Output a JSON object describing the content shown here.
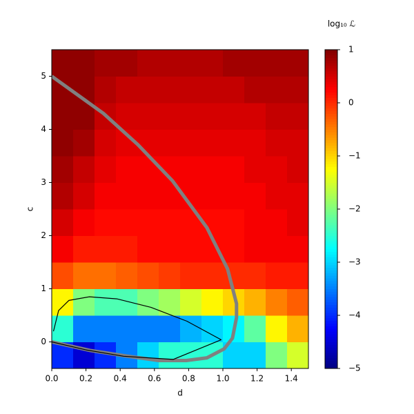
{
  "chart_data": {
    "type": "heatmap",
    "xlabel": "d",
    "ylabel": "c",
    "colorbar_label": "log₁₀ ℒ",
    "xlim": [
      0,
      1.5
    ],
    "ylim": [
      -0.5,
      5.5
    ],
    "xticks": [
      {
        "value": 0,
        "label": "0.0"
      },
      {
        "value": 0.2,
        "label": "0.2"
      },
      {
        "value": 0.4,
        "label": "0.4"
      },
      {
        "value": 0.6,
        "label": "0.6"
      },
      {
        "value": 0.8,
        "label": "0.8"
      },
      {
        "value": 1.0,
        "label": "1.0"
      },
      {
        "value": 1.2,
        "label": "1.2"
      },
      {
        "value": 1.4,
        "label": "1.4"
      }
    ],
    "yticks": [
      0,
      1,
      2,
      3,
      4,
      5
    ],
    "zlim": [
      -5,
      1
    ],
    "zticks": [
      1,
      0,
      {
        "value": -1,
        "label": "−1"
      },
      {
        "value": -2,
        "label": "−2"
      },
      {
        "value": -3,
        "label": "−3"
      },
      {
        "value": -4,
        "label": "−4"
      },
      {
        "value": -5,
        "label": "−5"
      }
    ],
    "colormap": "jet",
    "z": [
      [
        -4,
        -4.5,
        -4,
        -3.5,
        -3,
        -2.5,
        -2.5,
        -2.5,
        -3,
        -3,
        -2,
        -1.5
      ],
      [
        -2.5,
        -3.5,
        -3.5,
        -3.5,
        -3.5,
        -3.5,
        -3.2,
        -3,
        -2.8,
        -2.2,
        -1.2,
        -0.8
      ],
      [
        -1.2,
        -2,
        -2.3,
        -2.3,
        -2,
        -1.8,
        -1.5,
        -1.2,
        -1,
        -0.8,
        -0.5,
        -0.3
      ],
      [
        -0.2,
        -0.4,
        -0.4,
        -0.3,
        -0.2,
        -0.1,
        0,
        0,
        0,
        0,
        0.1,
        0.1
      ],
      [
        0.3,
        0.1,
        0.1,
        0.1,
        0.2,
        0.2,
        0.2,
        0.2,
        0.2,
        0.3,
        0.3,
        0.3
      ],
      [
        0.5,
        0.3,
        0.2,
        0.2,
        0.2,
        0.2,
        0.2,
        0.2,
        0.2,
        0.3,
        0.3,
        0.4
      ],
      [
        0.7,
        0.5,
        0.3,
        0.3,
        0.3,
        0.3,
        0.3,
        0.3,
        0.3,
        0.3,
        0.4,
        0.4
      ],
      [
        0.8,
        0.6,
        0.4,
        0.3,
        0.3,
        0.3,
        0.3,
        0.3,
        0.3,
        0.4,
        0.4,
        0.5
      ],
      [
        0.9,
        0.8,
        0.5,
        0.4,
        0.4,
        0.4,
        0.4,
        0.4,
        0.4,
        0.4,
        0.5,
        0.5
      ],
      [
        0.9,
        0.9,
        0.6,
        0.5,
        0.5,
        0.5,
        0.5,
        0.5,
        0.5,
        0.5,
        0.6,
        0.6
      ],
      [
        0.9,
        0.9,
        0.7,
        0.6,
        0.6,
        0.6,
        0.6,
        0.6,
        0.6,
        0.7,
        0.7,
        0.7
      ],
      [
        0.9,
        0.9,
        0.8,
        0.8,
        0.7,
        0.7,
        0.7,
        0.7,
        0.8,
        0.8,
        0.8,
        0.8
      ]
    ],
    "series": [
      {
        "color": "#808080",
        "width": 5,
        "x": [
          0,
          0.302,
          0.504,
          0.706,
          0.907,
          1.028,
          1.08,
          1.08,
          1.056,
          1.008,
          0.907,
          0.786,
          0.625,
          0.423,
          0.222,
          0
        ],
        "y": [
          5,
          4.3,
          3.71,
          3.03,
          2.15,
          1.37,
          0.72,
          0.46,
          0.07,
          -0.13,
          -0.3,
          -0.35,
          -0.35,
          -0.26,
          -0.16,
          0
        ]
      },
      {
        "color": "#000000",
        "width": 1.2,
        "x": [
          0.01,
          0.04,
          0.1,
          0.22,
          0.38,
          0.58,
          0.79,
          0.99,
          0.71,
          0.42,
          0.2,
          0
        ],
        "y": [
          0.2,
          0.59,
          0.78,
          0.85,
          0.81,
          0.65,
          0.39,
          0.04,
          -0.33,
          -0.27,
          -0.15,
          0
        ]
      }
    ]
  }
}
